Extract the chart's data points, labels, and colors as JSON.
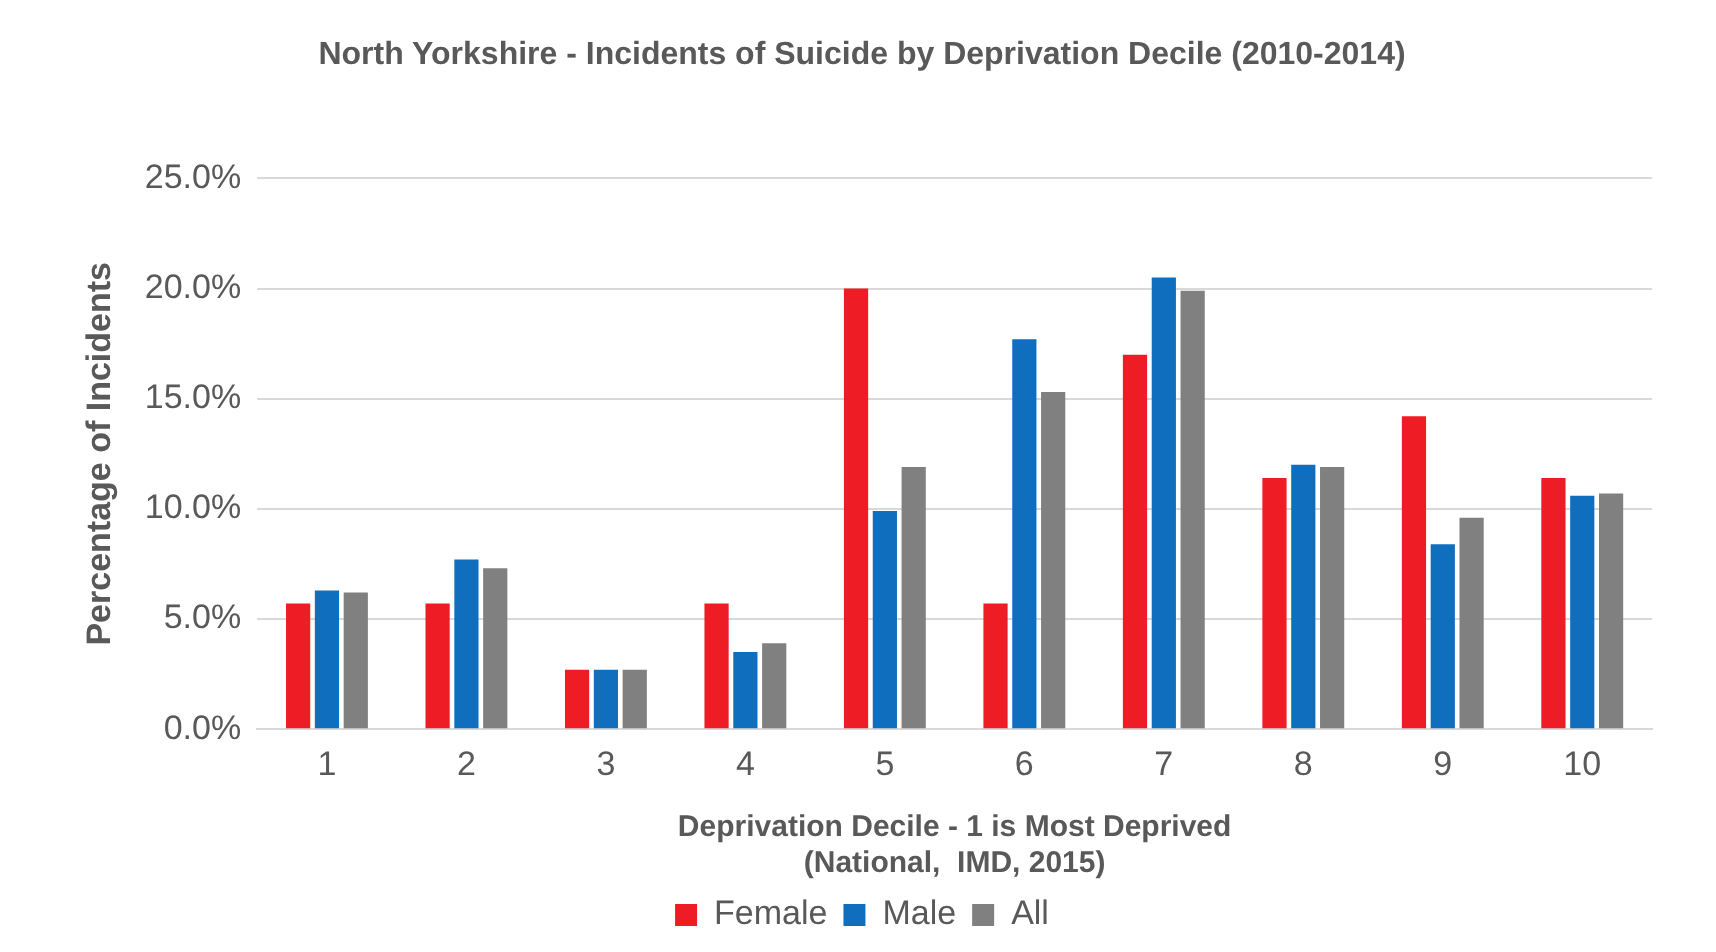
{
  "chart_data": {
    "type": "bar",
    "title": "North Yorkshire - Incidents of Suicide by Deprivation Decile (2010-2014)",
    "xlabel": "Deprivation Decile - 1 is Most Deprived\n(National,  IMD, 2015)",
    "ylabel": "Percentage of Incidents",
    "categories": [
      "1",
      "2",
      "3",
      "4",
      "5",
      "6",
      "7",
      "8",
      "9",
      "10"
    ],
    "series": [
      {
        "name": "Female",
        "color": "#ee1c25",
        "values": [
          5.7,
          5.7,
          2.7,
          5.7,
          20.0,
          5.7,
          17.0,
          11.4,
          14.2,
          11.4
        ]
      },
      {
        "name": "Male",
        "color": "#106ebe",
        "values": [
          6.3,
          7.7,
          2.7,
          3.5,
          9.9,
          17.7,
          20.5,
          12.0,
          8.4,
          10.6
        ]
      },
      {
        "name": "All",
        "color": "#808080",
        "values": [
          6.2,
          7.3,
          2.7,
          3.9,
          11.9,
          15.3,
          19.9,
          11.9,
          9.6,
          10.7
        ]
      }
    ],
    "ylim": [
      0,
      25
    ],
    "yticks": [
      {
        "value": 0,
        "label": "0.0%"
      },
      {
        "value": 5,
        "label": "5.0%"
      },
      {
        "value": 10,
        "label": "10.0%"
      },
      {
        "value": 15,
        "label": "15.0%"
      },
      {
        "value": 20,
        "label": "20.0%"
      },
      {
        "value": 25,
        "label": "25.0%"
      }
    ],
    "grid": "y",
    "legend": "bottom"
  }
}
